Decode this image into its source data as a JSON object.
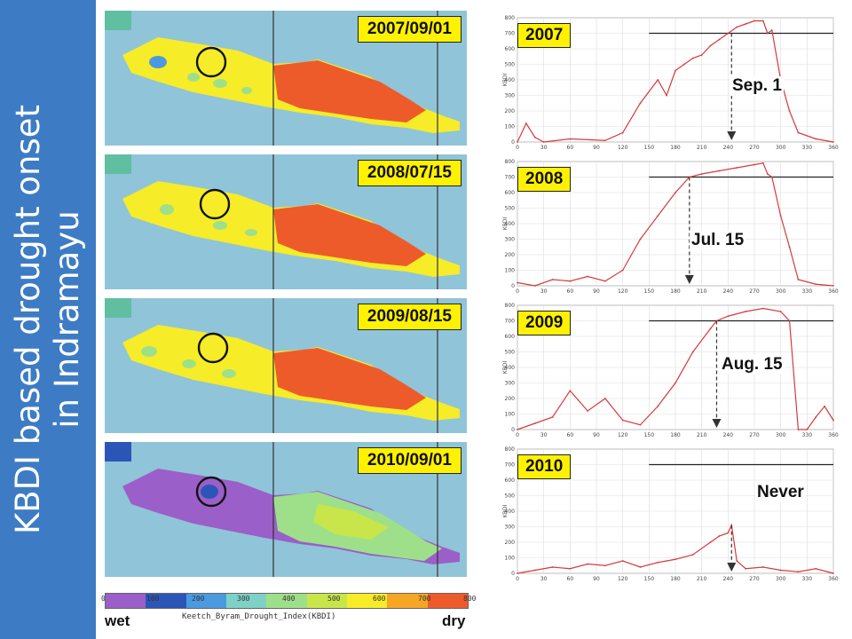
{
  "sidebar": {
    "title_line1": "KBDI based drought onset",
    "title_line2": "in Indramayu"
  },
  "maps": [
    {
      "date": "2007/09/01",
      "state": "dry"
    },
    {
      "date": "2008/07/15",
      "state": "dry"
    },
    {
      "date": "2009/08/15",
      "state": "dry"
    },
    {
      "date": "2010/09/01",
      "state": "wet"
    }
  ],
  "colorbar": {
    "title": "Keetch_Byram_Drought_Index(KBDI)",
    "wet_label": "wet",
    "dry_label": "dry",
    "ticks": [
      "0",
      "100",
      "200",
      "300",
      "400",
      "500",
      "600",
      "700",
      "800"
    ],
    "colors": [
      "#9a5fc8",
      "#2c55b8",
      "#4b9ae0",
      "#7fd0c6",
      "#9ee08a",
      "#c8e64a",
      "#f6ec28",
      "#f5a624",
      "#ee5b2a"
    ]
  },
  "charts": [
    {
      "year": "2007",
      "onset_label": "Sep. 1"
    },
    {
      "year": "2008",
      "onset_label": "Jul. 15"
    },
    {
      "year": "2009",
      "onset_label": "Aug. 15"
    },
    {
      "year": "2010",
      "onset_label": "Never"
    }
  ],
  "chart_data": [
    {
      "type": "line",
      "title": "2007",
      "ylabel": "KBDI",
      "xlim": [
        0,
        360
      ],
      "ylim": [
        0,
        800
      ],
      "threshold": 700,
      "onset_day": 244,
      "x": [
        0,
        10,
        20,
        30,
        60,
        100,
        120,
        140,
        160,
        170,
        180,
        190,
        200,
        210,
        220,
        230,
        240,
        250,
        260,
        270,
        280,
        285,
        290,
        300,
        310,
        320,
        340,
        360
      ],
      "y": [
        0,
        120,
        30,
        0,
        20,
        10,
        60,
        250,
        400,
        300,
        460,
        500,
        540,
        560,
        620,
        660,
        700,
        740,
        760,
        780,
        780,
        700,
        720,
        400,
        200,
        60,
        20,
        0
      ]
    },
    {
      "type": "line",
      "title": "2008",
      "ylabel": "KBDI",
      "xlim": [
        0,
        360
      ],
      "ylim": [
        0,
        800
      ],
      "threshold": 700,
      "onset_day": 196,
      "x": [
        0,
        20,
        40,
        60,
        80,
        100,
        120,
        140,
        160,
        180,
        196,
        210,
        230,
        250,
        270,
        280,
        285,
        290,
        300,
        310,
        320,
        340,
        360
      ],
      "y": [
        20,
        0,
        40,
        30,
        60,
        30,
        100,
        300,
        450,
        600,
        700,
        720,
        740,
        760,
        780,
        790,
        720,
        700,
        450,
        250,
        40,
        10,
        0
      ]
    },
    {
      "type": "line",
      "title": "2009",
      "ylabel": "KBDI",
      "xlim": [
        0,
        360
      ],
      "ylim": [
        0,
        800
      ],
      "threshold": 700,
      "onset_day": 227,
      "x": [
        0,
        20,
        40,
        60,
        80,
        100,
        120,
        140,
        160,
        180,
        200,
        220,
        227,
        240,
        260,
        280,
        300,
        310,
        320,
        330,
        340,
        350,
        360
      ],
      "y": [
        0,
        40,
        80,
        250,
        120,
        200,
        60,
        30,
        150,
        300,
        500,
        650,
        700,
        730,
        760,
        780,
        760,
        700,
        0,
        0,
        80,
        150,
        60
      ]
    },
    {
      "type": "line",
      "title": "2010",
      "ylabel": "KBDI",
      "xlim": [
        0,
        360
      ],
      "ylim": [
        0,
        800
      ],
      "threshold": 700,
      "onset_day": null,
      "x": [
        0,
        20,
        40,
        60,
        80,
        100,
        120,
        140,
        160,
        180,
        200,
        220,
        230,
        240,
        244,
        250,
        260,
        280,
        300,
        320,
        340,
        360
      ],
      "y": [
        0,
        20,
        40,
        30,
        60,
        50,
        80,
        40,
        70,
        90,
        120,
        200,
        240,
        260,
        310,
        80,
        30,
        40,
        20,
        10,
        30,
        0
      ]
    }
  ]
}
